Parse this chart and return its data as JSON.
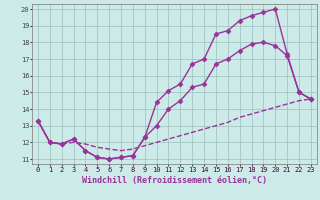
{
  "xlabel": "Windchill (Refroidissement éolien,°C)",
  "background_color": "#cceae8",
  "grid_color": "#9bbfbf",
  "line_color": "#993399",
  "xlim": [
    -0.5,
    23.5
  ],
  "ylim": [
    10.7,
    20.3
  ],
  "xticks": [
    0,
    1,
    2,
    3,
    4,
    5,
    6,
    7,
    8,
    9,
    10,
    11,
    12,
    13,
    14,
    15,
    16,
    17,
    18,
    19,
    20,
    21,
    22,
    23
  ],
  "yticks": [
    11,
    12,
    13,
    14,
    15,
    16,
    17,
    18,
    19,
    20
  ],
  "series1_x": [
    0,
    1,
    2,
    3,
    4,
    5,
    6,
    7,
    8,
    9,
    10,
    11,
    12,
    13,
    14,
    15,
    16,
    17,
    18,
    19,
    20,
    21,
    22,
    23
  ],
  "series1_y": [
    13.3,
    12.0,
    11.9,
    12.2,
    11.5,
    11.1,
    11.0,
    11.1,
    11.2,
    12.3,
    14.4,
    15.1,
    15.5,
    16.7,
    17.0,
    18.5,
    18.7,
    19.3,
    19.6,
    19.8,
    20.0,
    17.3,
    15.0,
    14.6
  ],
  "series2_x": [
    0,
    1,
    2,
    3,
    4,
    5,
    6,
    7,
    8,
    9,
    10,
    11,
    12,
    13,
    14,
    15,
    16,
    17,
    18,
    19,
    20,
    21,
    22,
    23
  ],
  "series2_y": [
    13.3,
    12.0,
    11.9,
    12.2,
    11.5,
    11.1,
    11.0,
    11.1,
    11.2,
    12.3,
    13.0,
    14.0,
    14.5,
    15.3,
    15.5,
    16.7,
    17.0,
    17.5,
    17.9,
    18.0,
    17.8,
    17.2,
    15.0,
    14.6
  ],
  "series3_x": [
    0,
    1,
    2,
    3,
    4,
    5,
    6,
    7,
    8,
    9,
    10,
    11,
    12,
    13,
    14,
    15,
    16,
    17,
    18,
    19,
    20,
    21,
    22,
    23
  ],
  "series3_y": [
    13.3,
    12.0,
    11.9,
    12.0,
    11.9,
    11.7,
    11.6,
    11.5,
    11.6,
    11.8,
    12.0,
    12.2,
    12.4,
    12.6,
    12.8,
    13.0,
    13.2,
    13.5,
    13.7,
    13.9,
    14.1,
    14.3,
    14.5,
    14.6
  ],
  "marker": "D",
  "markersize": 2.5,
  "linewidth": 1.0,
  "axis_fontsize": 6.0,
  "tick_fontsize": 5.0
}
